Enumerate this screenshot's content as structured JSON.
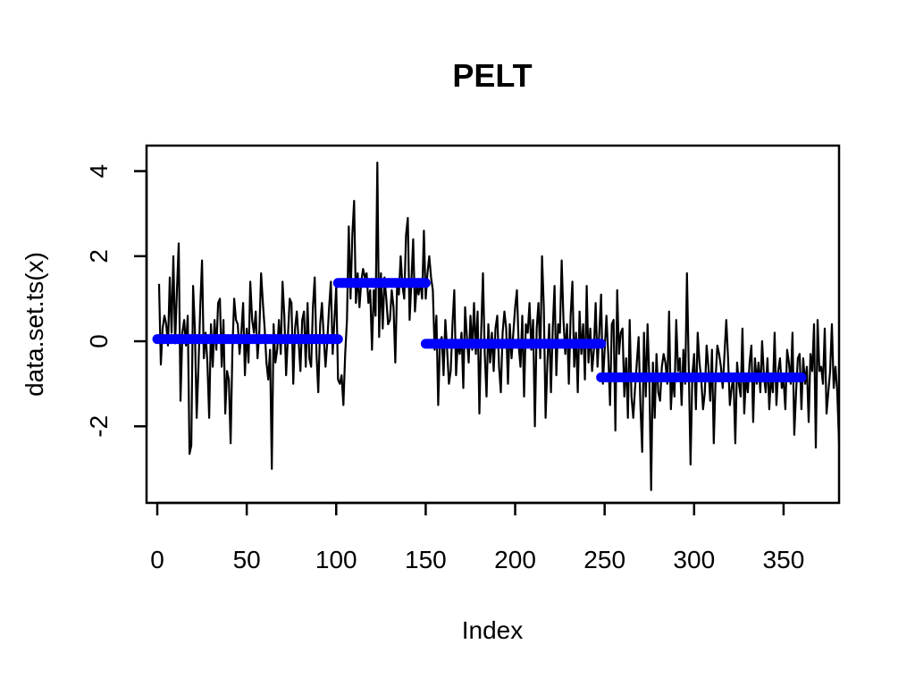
{
  "chart_data": {
    "type": "line",
    "title": "PELT",
    "xlabel": "Index",
    "ylabel": "data.set.ts(x)",
    "xlim": [
      -6,
      381
    ],
    "ylim": [
      -3.8,
      4.6
    ],
    "x_ticks": [
      0,
      50,
      100,
      150,
      200,
      250,
      300,
      350
    ],
    "y_ticks": [
      -2,
      0,
      2,
      4
    ],
    "colors": {
      "series": "#000000",
      "segments": "#0000ff"
    },
    "series": [
      {
        "values": [
          1.35,
          -0.55,
          0.3,
          0.6,
          0.4,
          -0.1,
          1.5,
          0.2,
          2.0,
          -0.05,
          1.2,
          2.3,
          -1.4,
          0.2,
          0.5,
          -0.1,
          0.6,
          -2.65,
          -2.45,
          1.3,
          0.3,
          -1.8,
          -0.6,
          0.8,
          1.9,
          -0.4,
          0.2,
          -0.5,
          -1.8,
          0.4,
          -0.6,
          0.5,
          -0.2,
          0.9,
          1.0,
          -0.6,
          0.5,
          -1.7,
          -0.7,
          -0.9,
          -2.4,
          -0.2,
          1.0,
          0.5,
          0.4,
          -0.3,
          0.2,
          0.9,
          -0.8,
          0.3,
          -0.5,
          1.4,
          0.5,
          0.2,
          0.7,
          -0.4,
          0.2,
          1.6,
          0.9,
          0.3,
          -0.5,
          -0.9,
          -0.2,
          -3.0,
          0.4,
          -0.5,
          -0.2,
          0.5,
          -0.3,
          1.4,
          0.6,
          -0.8,
          0.1,
          1.0,
          0.9,
          -1.0,
          0.3,
          0.7,
          0.0,
          -0.7,
          0.5,
          0.7,
          -0.6,
          0.9,
          -0.4,
          -0.6,
          0.8,
          1.5,
          -0.3,
          -1.2,
          0.4,
          0.9,
          0.1,
          -0.6,
          0.0,
          0.8,
          1.4,
          -0.3,
          0.5,
          1.3,
          -0.9,
          -1.0,
          -0.8,
          -1.5,
          -0.3,
          0.5,
          2.7,
          1.0,
          2.5,
          3.3,
          0.9,
          1.6,
          0.8,
          1.4,
          1.7,
          1.5,
          1.6,
          0.9,
          1.2,
          -0.2,
          1.2,
          0.6,
          4.2,
          0.1,
          1.6,
          0.3,
          1.5,
          1.0,
          0.4,
          0.5,
          1.2,
          0.8,
          -0.5,
          1.3,
          1.1,
          2.0,
          1.3,
          1.0,
          2.5,
          2.9,
          0.5,
          1.4,
          2.4,
          0.7,
          1.3,
          1.1,
          1.4,
          1.0,
          2.6,
          1.0,
          1.6,
          2.0,
          1.5,
          1.2,
          -0.2,
          0.6,
          -1.5,
          0.0,
          0.1,
          -0.8,
          0.5,
          -0.2,
          -1.0,
          -0.7,
          0.4,
          1.2,
          -0.8,
          0.0,
          -0.3,
          0.2,
          -1.1,
          0.8,
          0.1,
          -0.5,
          0.6,
          -0.2,
          0.9,
          -0.3,
          0.7,
          -1.7,
          0.2,
          1.6,
          -0.3,
          -1.3,
          0.4,
          -0.5,
          0.2,
          -0.7,
          0.3,
          0.6,
          -0.6,
          -1.2,
          0.2,
          0.7,
          0.3,
          -1.0,
          0.4,
          -0.4,
          0.2,
          0.8,
          1.2,
          -0.1,
          -0.6,
          0.6,
          -1.3,
          0.4,
          0.2,
          0.9,
          -0.2,
          0.5,
          -2.0,
          0.3,
          0.9,
          -0.4,
          2.0,
          0.8,
          -1.8,
          -0.5,
          0.4,
          -1.2,
          0.3,
          1.3,
          -0.8,
          0.4,
          0.2,
          1.9,
          0.5,
          -0.3,
          0.4,
          -1.0,
          0.6,
          1.4,
          -0.6,
          0.2,
          -1.2,
          0.7,
          -0.3,
          0.4,
          -0.9,
          1.3,
          -0.5,
          0.3,
          -0.7,
          -0.2,
          0.9,
          -0.6,
          0.2,
          1.1,
          -1.0,
          -0.2,
          0.6,
          -0.3,
          -1.5,
          0.4,
          0.5,
          -2.1,
          1.2,
          -0.3,
          0.2,
          0.3,
          -1.3,
          -0.4,
          -1.8,
          0.5,
          -1.3,
          -1.8,
          -1.1,
          -0.5,
          0.1,
          -1.5,
          -2.6,
          0.2,
          -1.3,
          0.4,
          -0.9,
          -3.5,
          -0.5,
          -1.8,
          -0.3,
          -1.2,
          -1.4,
          -0.6,
          -0.3,
          -0.5,
          -1.0,
          0.7,
          -1.6,
          -0.8,
          -1.3,
          0.5,
          -0.7,
          -0.4,
          -1.5,
          -0.2,
          -1.0,
          1.6,
          -0.6,
          -2.9,
          -0.8,
          -0.3,
          -1.6,
          0.2,
          -0.5,
          -0.9,
          -1.6,
          -1.2,
          -0.1,
          -0.6,
          -1.4,
          -0.2,
          -2.4,
          -0.9,
          -0.1,
          -0.3,
          -0.6,
          -1.1,
          -0.3,
          0.5,
          -0.4,
          -1.5,
          -1.1,
          -0.8,
          -2.4,
          -0.5,
          -1.0,
          -1.3,
          0.3,
          -1.7,
          -0.8,
          -1.2,
          -0.5,
          -0.1,
          -1.9,
          -0.4,
          -1.0,
          -0.5,
          -1.2,
          0.0,
          -0.8,
          -1.2,
          -0.4,
          -1.6,
          -0.8,
          -1.2,
          0.2,
          -1.5,
          -0.7,
          -0.4,
          -1.1,
          -0.9,
          -1.6,
          -0.2,
          -0.5,
          -1.0,
          0.2,
          -2.2,
          -1.2,
          -0.4,
          -0.3,
          -1.6,
          -0.4,
          -1.0,
          -0.6,
          -1.9,
          -0.3,
          -0.7,
          0.4,
          -2.5,
          0.5,
          -0.7,
          -0.6,
          -1.0,
          0.3,
          -1.7,
          -1.2,
          -0.7,
          0.4,
          -1.1,
          -0.6,
          -1.2,
          -2.4
        ]
      }
    ],
    "segments": [
      {
        "x_start": 0,
        "x_end": 101,
        "y": 0.05
      },
      {
        "x_start": 101,
        "x_end": 150,
        "y": 1.37
      },
      {
        "x_start": 150,
        "x_end": 248,
        "y": -0.06
      },
      {
        "x_start": 248,
        "x_end": 360,
        "y": -0.85
      }
    ]
  }
}
